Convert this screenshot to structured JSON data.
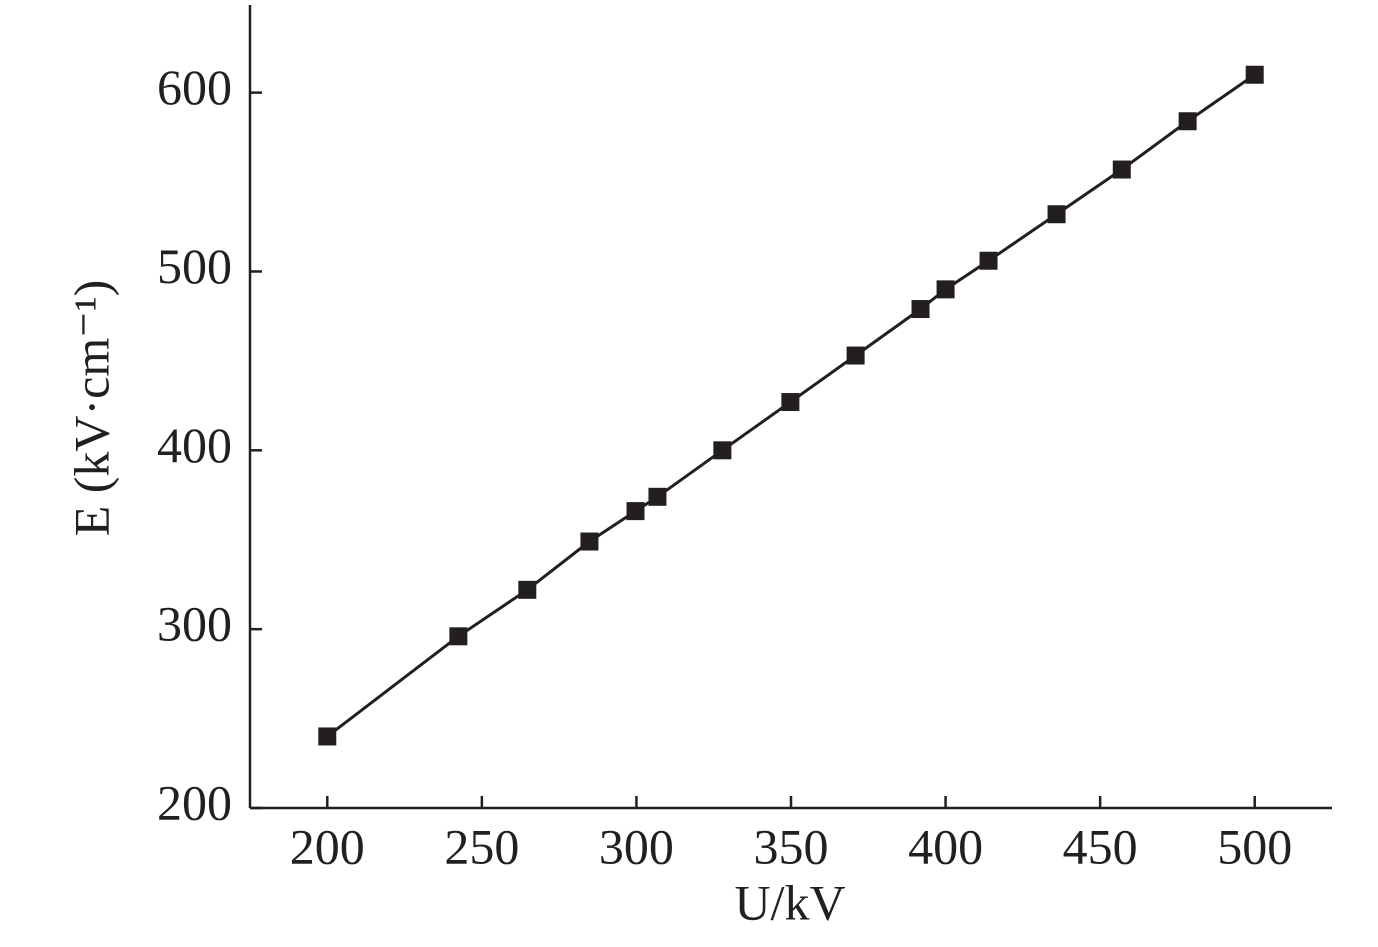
{
  "chart_data": {
    "type": "line",
    "xlabel": "U/kV",
    "ylabel": "E (kV·cm⁻¹)",
    "x": [
      200,
      242.4,
      264.7,
      284.8,
      299.7,
      306.8,
      327.8,
      349.8,
      370.9,
      391.9,
      400,
      413.9,
      435.9,
      457,
      478.3,
      500
    ],
    "series": [
      {
        "color": "#231f20",
        "values": [
          240,
          296,
          322,
          349,
          366,
          374,
          400,
          427,
          453,
          479,
          490,
          506,
          532,
          557,
          584,
          610
        ]
      }
    ],
    "xlim": [
      175,
      525
    ],
    "xticks": [
      200,
      250,
      300,
      350,
      400,
      450,
      500
    ],
    "ylim": [
      200,
      649
    ],
    "yticks": [
      200,
      300,
      400,
      500,
      600
    ]
  }
}
